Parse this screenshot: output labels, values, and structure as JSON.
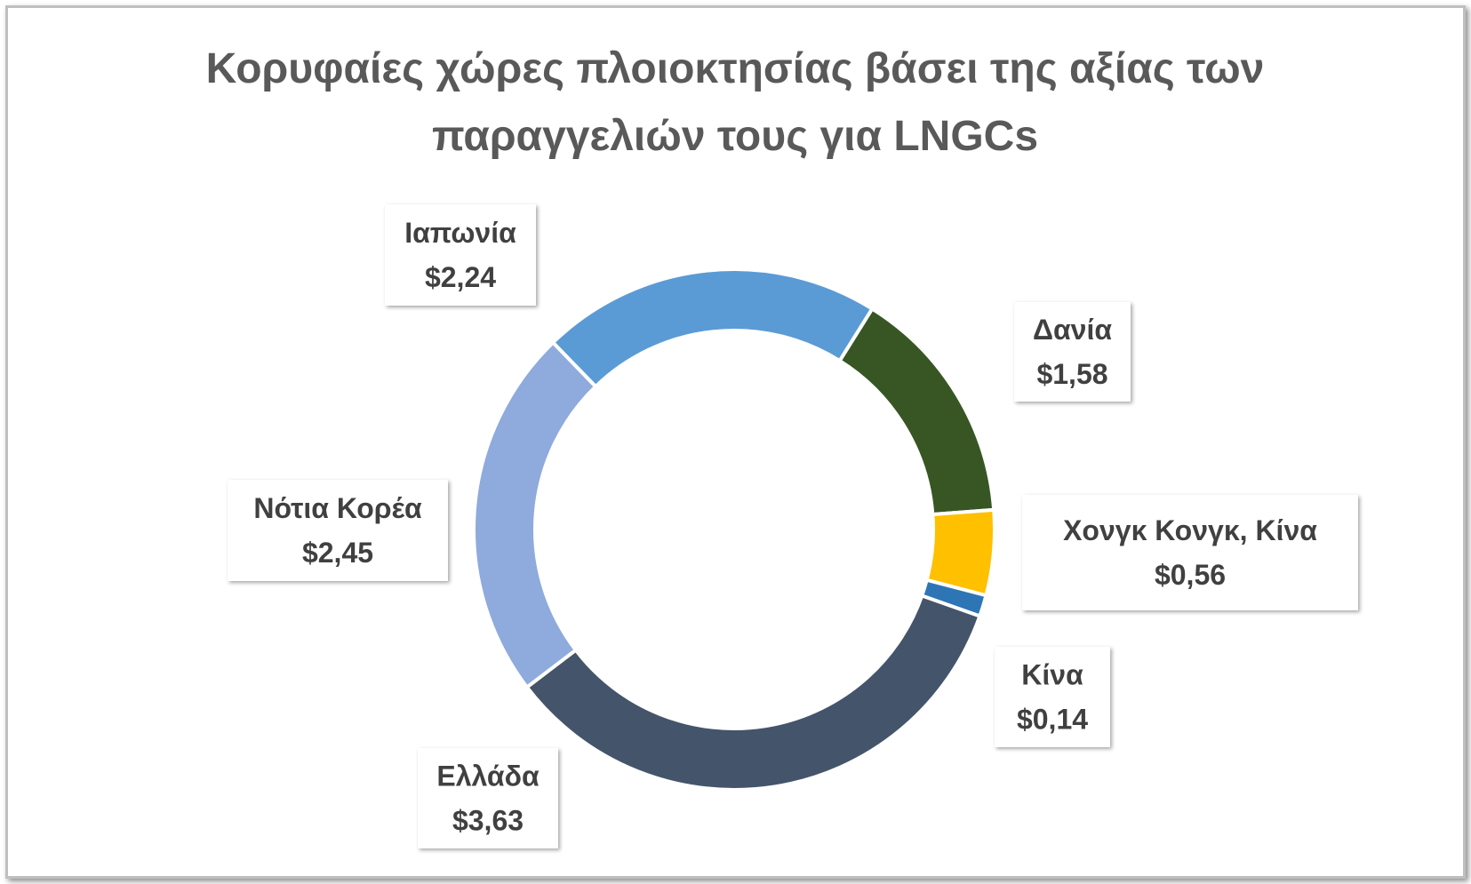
{
  "chart_data": {
    "type": "donut",
    "title": "Κορυφαίες χώρες πλοιοκτησίας βάσει της αξίας των παραγγελιών τους για LNGCs",
    "categories": [
      "Δανία",
      "Χονγκ Κονγκ, Κίνα",
      "Κίνα",
      "Ελλάδα",
      "Νότια Κορέα",
      "Ιαπωνία"
    ],
    "values": [
      1.58,
      0.56,
      0.14,
      3.63,
      2.45,
      2.24
    ],
    "value_labels": [
      "$1,58",
      "$0,56",
      "$0,14",
      "$3,63",
      "$2,45",
      "$2,24"
    ],
    "colors": [
      "#375623",
      "#FFC000",
      "#2E75B6",
      "#44546A",
      "#8FAADC",
      "#5B9BD5"
    ],
    "start_angle": 32
  }
}
